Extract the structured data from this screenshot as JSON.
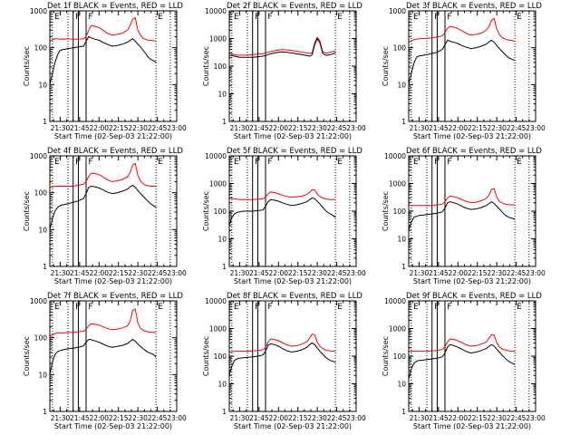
{
  "figure": {
    "start_time_label": "Start Time (02-Sep-03 21:22:00)"
  },
  "chart_data": {
    "type": "line",
    "shared": {
      "xlabel": "Start Time (02-Sep-03 21:22:00)",
      "ylabel": "Counts/sec",
      "x_ticks": [
        "21:30",
        "21:45",
        "22:00",
        "22:15",
        "22:30",
        "22:45",
        "23:00"
      ],
      "x_tick_minutes": [
        30,
        45,
        60,
        75,
        90,
        105,
        120
      ],
      "xlim_minutes": [
        22,
        120
      ],
      "yscale": "log",
      "series_colors": {
        "events": "#000000",
        "lld": "#ff0000"
      },
      "markers": [
        {
          "label": "E",
          "minute": 24,
          "style": "dotted"
        },
        {
          "label": "",
          "minute": 36,
          "style": "dotted"
        },
        {
          "label": "F",
          "minute": 40,
          "style": "solid"
        },
        {
          "label": "",
          "minute": 44,
          "style": "solid"
        },
        {
          "label": "F",
          "minute": 50,
          "style": "solid"
        },
        {
          "label": "E",
          "minute": 104,
          "style": "dotted"
        },
        {
          "label": "",
          "minute": 115,
          "style": "dotted"
        }
      ],
      "x": [
        22,
        24,
        26,
        28,
        30,
        33,
        36,
        40,
        44,
        48,
        50,
        52,
        54,
        57,
        60,
        63,
        66,
        70,
        74,
        78,
        82,
        84,
        86,
        88,
        90,
        92,
        94,
        96,
        98,
        100,
        102,
        104
      ]
    },
    "panels": [
      {
        "title": "Det 1f  BLACK = Events, RED = LLD",
        "ylim": [
          1,
          1000
        ],
        "y_ticks": [
          "1",
          "10",
          "100",
          "1000"
        ],
        "series": [
          {
            "name": "Events",
            "values": [
              10,
              20,
              40,
              65,
              85,
              90,
              95,
              100,
              105,
              110,
              150,
              200,
              185,
              170,
              160,
              140,
              125,
              110,
              115,
              125,
              140,
              160,
              175,
              150,
              125,
              105,
              85,
              70,
              55,
              48,
              45,
              40
            ]
          },
          {
            "name": "LLD",
            "values": [
              150,
              165,
              175,
              175,
              170,
              170,
              175,
              170,
              170,
              175,
              200,
              300,
              400,
              380,
              350,
              300,
              250,
              220,
              230,
              250,
              300,
              400,
              600,
              650,
              300,
              220,
              180,
              170,
              160,
              160,
              155,
              150
            ]
          }
        ]
      },
      {
        "title": "Det 2f  BLACK = Events, RED = LLD",
        "ylim": [
          1,
          10000
        ],
        "y_ticks": [
          "1",
          "10",
          "100",
          "1000",
          "10000"
        ],
        "series": [
          {
            "name": "Events",
            "values": [
              250,
              240,
              230,
              220,
              210,
              210,
              210,
              210,
              220,
              230,
              240,
              260,
              280,
              300,
              320,
              330,
              320,
              300,
              280,
              260,
              240,
              230,
              260,
              600,
              1000,
              700,
              300,
              250,
              250,
              260,
              280,
              300
            ]
          },
          {
            "name": "LLD",
            "values": [
              300,
              280,
              260,
              250,
              250,
              250,
              250,
              260,
              270,
              280,
              300,
              320,
              340,
              360,
              380,
              400,
              390,
              370,
              350,
              320,
              300,
              290,
              300,
              700,
              1100,
              800,
              350,
              300,
              300,
              320,
              340,
              360
            ]
          }
        ]
      },
      {
        "title": "Det 3f  BLACK = Events, RED = LLD",
        "ylim": [
          1,
          1000
        ],
        "y_ticks": [
          "1",
          "10",
          "100",
          "1000"
        ],
        "series": [
          {
            "name": "Events",
            "values": [
              10,
              20,
              38,
              55,
              60,
              62,
              65,
              70,
              75,
              90,
              120,
              160,
              150,
              140,
              130,
              115,
              105,
              95,
              100,
              110,
              125,
              145,
              160,
              140,
              115,
              95,
              80,
              68,
              58,
              52,
              48,
              45
            ]
          },
          {
            "name": "LLD",
            "values": [
              140,
              155,
              165,
              170,
              175,
              178,
              180,
              185,
              195,
              210,
              260,
              340,
              380,
              360,
              330,
              290,
              250,
              220,
              230,
              250,
              300,
              380,
              560,
              620,
              320,
              230,
              190,
              175,
              165,
              160,
              155,
              150
            ]
          }
        ]
      },
      {
        "title": "Det 4f  BLACK = Events, RED = LLD",
        "ylim": [
          1,
          1000
        ],
        "y_ticks": [
          "1",
          "10",
          "100",
          "1000"
        ],
        "series": [
          {
            "name": "Events",
            "values": [
              10,
              20,
              32,
              40,
              45,
              48,
              50,
              55,
              60,
              70,
              95,
              140,
              150,
              145,
              135,
              120,
              105,
              95,
              100,
              110,
              125,
              145,
              160,
              140,
              115,
              95,
              80,
              68,
              58,
              50,
              45,
              40
            ]
          },
          {
            "name": "LLD",
            "values": [
              140,
              145,
              150,
              150,
              150,
              150,
              150,
              150,
              160,
              170,
              200,
              280,
              340,
              330,
              310,
              270,
              230,
              200,
              210,
              230,
              270,
              350,
              560,
              620,
              300,
              210,
              175,
              160,
              155,
              150,
              150,
              150
            ]
          }
        ]
      },
      {
        "title": "Det 5f  BLACK = Events, RED = LLD",
        "ylim": [
          1,
          10000
        ],
        "y_ticks": [
          "1",
          "10",
          "100",
          "1000",
          "10000"
        ],
        "series": [
          {
            "name": "Events",
            "values": [
              30,
              60,
              80,
              90,
              95,
              100,
              100,
              100,
              105,
              110,
              150,
              220,
              260,
              250,
              230,
              200,
              180,
              160,
              170,
              190,
              220,
              260,
              300,
              280,
              230,
              180,
              140,
              110,
              90,
              80,
              70,
              60
            ]
          },
          {
            "name": "LLD",
            "values": [
              300,
              290,
              280,
              270,
              260,
              260,
              260,
              260,
              270,
              280,
              320,
              420,
              500,
              470,
              420,
              380,
              340,
              320,
              330,
              350,
              400,
              480,
              600,
              580,
              420,
              340,
              300,
              280,
              270,
              260,
              260,
              260
            ]
          }
        ]
      },
      {
        "title": "Det 6f  BLACK = Events, RED = LLD",
        "ylim": [
          1,
          10000
        ],
        "y_ticks": [
          "1",
          "10",
          "100",
          "1000",
          "10000"
        ],
        "series": [
          {
            "name": "Events",
            "values": [
              20,
              40,
              60,
              65,
              70,
              72,
              75,
              80,
              85,
              95,
              130,
              200,
              220,
              200,
              180,
              150,
              130,
              115,
              120,
              135,
              160,
              190,
              220,
              190,
              150,
              120,
              95,
              75,
              65,
              58,
              55,
              50
            ]
          },
          {
            "name": "LLD",
            "values": [
              160,
              160,
              160,
              160,
              160,
              160,
              160,
              160,
              170,
              180,
              220,
              300,
              350,
              330,
              300,
              260,
              230,
              200,
              210,
              240,
              290,
              380,
              620,
              650,
              320,
              230,
              200,
              185,
              175,
              170,
              170,
              170
            ]
          }
        ]
      },
      {
        "title": "Det 7f  BLACK = Events, RED = LLD",
        "ylim": [
          1,
          1000
        ],
        "y_ticks": [
          "1",
          "10",
          "100",
          "1000"
        ],
        "series": [
          {
            "name": "Events",
            "values": [
              10,
              22,
              35,
              42,
              45,
              48,
              50,
              52,
              55,
              60,
              75,
              90,
              88,
              82,
              75,
              68,
              60,
              55,
              58,
              62,
              70,
              80,
              90,
              80,
              68,
              58,
              50,
              45,
              40,
              38,
              35,
              30
            ]
          },
          {
            "name": "LLD",
            "values": [
              110,
              120,
              130,
              135,
              135,
              135,
              140,
              140,
              145,
              150,
              170,
              210,
              240,
              230,
              220,
              200,
              180,
              165,
              170,
              185,
              210,
              280,
              550,
              600,
              250,
              180,
              160,
              150,
              145,
              140,
              140,
              140
            ]
          }
        ]
      },
      {
        "title": "Det 8f  BLACK = Events, RED = LLD",
        "ylim": [
          1,
          10000
        ],
        "y_ticks": [
          "1",
          "10",
          "100",
          "1000",
          "10000"
        ],
        "series": [
          {
            "name": "Events",
            "values": [
              20,
              45,
              70,
              80,
              85,
              88,
              90,
              95,
              100,
              110,
              150,
              250,
              280,
              260,
              230,
              190,
              160,
              140,
              150,
              170,
              210,
              260,
              300,
              260,
              200,
              150,
              120,
              95,
              80,
              70,
              65,
              60
            ]
          },
          {
            "name": "LLD",
            "values": [
              140,
              145,
              150,
              150,
              150,
              150,
              150,
              155,
              160,
              170,
              210,
              320,
              420,
              400,
              360,
              310,
              260,
              230,
              240,
              270,
              330,
              450,
              620,
              600,
              320,
              230,
              190,
              170,
              160,
              155,
              150,
              150
            ]
          }
        ]
      },
      {
        "title": "Det 9f  BLACK = Events, RED = LLD",
        "ylim": [
          1,
          10000
        ],
        "y_ticks": [
          "1",
          "10",
          "100",
          "1000",
          "10000"
        ],
        "series": [
          {
            "name": "Events",
            "values": [
              15,
              35,
              55,
              65,
              70,
              72,
              75,
              80,
              85,
              95,
              130,
              220,
              260,
              240,
              210,
              180,
              150,
              130,
              140,
              160,
              190,
              230,
              260,
              230,
              180,
              140,
              110,
              88,
              72,
              62,
              55,
              50
            ]
          },
          {
            "name": "LLD",
            "values": [
              150,
              150,
              150,
              150,
              150,
              150,
              150,
              155,
              160,
              175,
              220,
              330,
              420,
              400,
              360,
              310,
              260,
              230,
              240,
              270,
              330,
              450,
              600,
              580,
              310,
              220,
              185,
              170,
              160,
              155,
              150,
              150
            ]
          }
        ]
      }
    ]
  }
}
